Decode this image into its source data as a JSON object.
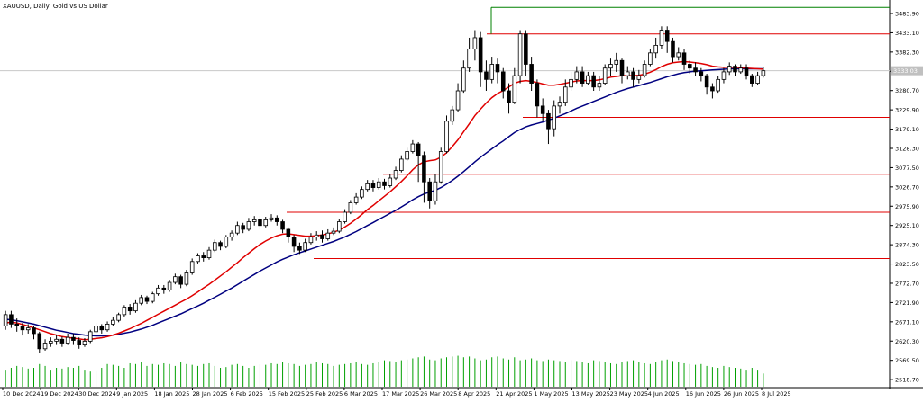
{
  "window": {
    "title": "XAUUSD, Daily:  Gold vs US Dollar"
  },
  "colors": {
    "background": "#ffffff",
    "bull_body": "#ffffff",
    "bear_body": "#000000",
    "candle_outline": "#000000",
    "ma_fast": "#e00000",
    "ma_slow": "#000080",
    "level_line": "#e00000",
    "high_line": "#008000",
    "volume": "#00a000",
    "axis": "#000000",
    "price_tag": "#c0c0c0"
  },
  "price_axis": {
    "labels": [
      "3483.90",
      "3433.10",
      "3382.30",
      "3331.50",
      "3280.70",
      "3229.90",
      "3179.10",
      "3128.30",
      "3077.50",
      "3026.70",
      "2975.90",
      "2925.10",
      "2874.30",
      "2823.50",
      "2772.70",
      "2721.90",
      "2671.10",
      "2620.30",
      "2569.50",
      "2518.70"
    ],
    "current_price_tag": "3333.03"
  },
  "time_axis": {
    "labels": [
      "10 Dec 2024",
      "19 Dec 2024",
      "30 Dec 2024",
      "9 Jan 2025",
      "18 Jan 2025",
      "28 Jan 2025",
      "6 Feb 2025",
      "15 Feb 2025",
      "25 Feb 2025",
      "6 Mar 2025",
      "17 Mar 2025",
      "26 Mar 2025",
      "8 Apr 2025",
      "21 Apr 2025",
      "1 May 2025",
      "13 May 2025",
      "23 May 2025",
      "4 Jun 2025",
      "16 Jun 2025",
      "26 Jun 2025",
      "8 Jul 2025"
    ]
  },
  "chart_data": {
    "type": "candlestick",
    "symbol": "XAUUSD",
    "timeframe": "Daily",
    "y_range": [
      2500,
      3510
    ],
    "levels": [
      3430,
      3210,
      3060,
      2960,
      2838
    ],
    "high_line": 3500,
    "candles": [
      [
        2660,
        2690,
        2650,
        2700
      ],
      [
        2690,
        2665,
        2655,
        2700
      ],
      [
        2665,
        2660,
        2645,
        2680
      ],
      [
        2660,
        2650,
        2635,
        2668
      ],
      [
        2650,
        2655,
        2640,
        2665
      ],
      [
        2655,
        2640,
        2625,
        2660
      ],
      [
        2640,
        2600,
        2590,
        2645
      ],
      [
        2600,
        2615,
        2595,
        2625
      ],
      [
        2615,
        2620,
        2605,
        2630
      ],
      [
        2620,
        2625,
        2610,
        2635
      ],
      [
        2625,
        2615,
        2605,
        2632
      ],
      [
        2615,
        2630,
        2610,
        2640
      ],
      [
        2630,
        2622,
        2610,
        2640
      ],
      [
        2622,
        2610,
        2600,
        2630
      ],
      [
        2610,
        2620,
        2605,
        2628
      ],
      [
        2620,
        2645,
        2615,
        2650
      ],
      [
        2645,
        2660,
        2640,
        2668
      ],
      [
        2660,
        2650,
        2640,
        2665
      ],
      [
        2650,
        2665,
        2645,
        2672
      ],
      [
        2665,
        2675,
        2660,
        2685
      ],
      [
        2675,
        2690,
        2670,
        2695
      ],
      [
        2690,
        2710,
        2685,
        2715
      ],
      [
        2710,
        2700,
        2690,
        2718
      ],
      [
        2700,
        2720,
        2695,
        2728
      ],
      [
        2720,
        2735,
        2715,
        2742
      ],
      [
        2735,
        2725,
        2718,
        2740
      ],
      [
        2725,
        2745,
        2720,
        2750
      ],
      [
        2745,
        2760,
        2740,
        2768
      ],
      [
        2760,
        2755,
        2745,
        2768
      ],
      [
        2755,
        2775,
        2750,
        2782
      ],
      [
        2775,
        2790,
        2770,
        2798
      ],
      [
        2790,
        2770,
        2760,
        2795
      ],
      [
        2770,
        2800,
        2765,
        2808
      ],
      [
        2800,
        2830,
        2795,
        2838
      ],
      [
        2830,
        2845,
        2825,
        2852
      ],
      [
        2845,
        2840,
        2830,
        2855
      ],
      [
        2840,
        2860,
        2835,
        2868
      ],
      [
        2860,
        2880,
        2855,
        2888
      ],
      [
        2880,
        2870,
        2860,
        2885
      ],
      [
        2870,
        2895,
        2865,
        2900
      ],
      [
        2895,
        2905,
        2885,
        2912
      ],
      [
        2905,
        2925,
        2900,
        2935
      ],
      [
        2925,
        2915,
        2905,
        2932
      ],
      [
        2915,
        2935,
        2910,
        2945
      ],
      [
        2935,
        2940,
        2925,
        2950
      ],
      [
        2940,
        2925,
        2915,
        2950
      ],
      [
        2925,
        2940,
        2920,
        2948
      ],
      [
        2940,
        2945,
        2935,
        2955
      ],
      [
        2945,
        2935,
        2925,
        2952
      ],
      [
        2935,
        2915,
        2905,
        2940
      ],
      [
        2915,
        2895,
        2880,
        2920
      ],
      [
        2895,
        2870,
        2855,
        2900
      ],
      [
        2870,
        2860,
        2850,
        2880
      ],
      [
        2860,
        2880,
        2855,
        2890
      ],
      [
        2880,
        2895,
        2875,
        2905
      ],
      [
        2895,
        2900,
        2885,
        2910
      ],
      [
        2900,
        2890,
        2880,
        2912
      ],
      [
        2890,
        2905,
        2885,
        2915
      ],
      [
        2905,
        2910,
        2900,
        2920
      ],
      [
        2910,
        2935,
        2905,
        2942
      ],
      [
        2935,
        2960,
        2930,
        2968
      ],
      [
        2960,
        2985,
        2955,
        2992
      ],
      [
        2985,
        3000,
        2980,
        3010
      ],
      [
        3000,
        3020,
        2995,
        3028
      ],
      [
        3020,
        3035,
        3015,
        3045
      ],
      [
        3035,
        3025,
        3015,
        3045
      ],
      [
        3025,
        3040,
        3020,
        3050
      ],
      [
        3040,
        3030,
        3020,
        3048
      ],
      [
        3030,
        3050,
        3025,
        3060
      ],
      [
        3050,
        3070,
        3045,
        3080
      ],
      [
        3070,
        3100,
        3065,
        3110
      ],
      [
        3100,
        3120,
        3095,
        3130
      ],
      [
        3120,
        3140,
        3115,
        3150
      ],
      [
        3140,
        3110,
        3040,
        3145
      ],
      [
        3110,
        3040,
        2985,
        3120
      ],
      [
        3040,
        2990,
        2970,
        3050
      ],
      [
        2990,
        3040,
        2980,
        3060
      ],
      [
        3040,
        3120,
        3035,
        3130
      ],
      [
        3120,
        3200,
        3115,
        3215
      ],
      [
        3200,
        3230,
        3190,
        3240
      ],
      [
        3230,
        3280,
        3225,
        3300
      ],
      [
        3280,
        3340,
        3275,
        3360
      ],
      [
        3340,
        3390,
        3330,
        3420
      ],
      [
        3390,
        3420,
        3360,
        3440
      ],
      [
        3420,
        3330,
        3290,
        3435
      ],
      [
        3330,
        3310,
        3280,
        3360
      ],
      [
        3310,
        3350,
        3300,
        3370
      ],
      [
        3350,
        3330,
        3300,
        3365
      ],
      [
        3330,
        3280,
        3260,
        3340
      ],
      [
        3280,
        3250,
        3220,
        3300
      ],
      [
        3250,
        3320,
        3245,
        3340
      ],
      [
        3320,
        3430,
        3300,
        3440
      ],
      [
        3430,
        3350,
        3320,
        3440
      ],
      [
        3350,
        3300,
        3280,
        3370
      ],
      [
        3300,
        3240,
        3210,
        3310
      ],
      [
        3240,
        3220,
        3200,
        3260
      ],
      [
        3220,
        3180,
        3140,
        3230
      ],
      [
        3180,
        3240,
        3160,
        3255
      ],
      [
        3240,
        3250,
        3220,
        3265
      ],
      [
        3250,
        3290,
        3240,
        3310
      ],
      [
        3290,
        3310,
        3280,
        3330
      ],
      [
        3310,
        3330,
        3300,
        3345
      ],
      [
        3330,
        3300,
        3290,
        3345
      ],
      [
        3300,
        3320,
        3295,
        3330
      ],
      [
        3320,
        3290,
        3280,
        3330
      ],
      [
        3290,
        3300,
        3280,
        3320
      ],
      [
        3300,
        3340,
        3295,
        3350
      ],
      [
        3340,
        3350,
        3320,
        3365
      ],
      [
        3350,
        3360,
        3330,
        3380
      ],
      [
        3360,
        3320,
        3300,
        3365
      ],
      [
        3320,
        3330,
        3310,
        3345
      ],
      [
        3330,
        3310,
        3290,
        3340
      ],
      [
        3310,
        3320,
        3300,
        3335
      ],
      [
        3320,
        3350,
        3315,
        3360
      ],
      [
        3350,
        3380,
        3345,
        3390
      ],
      [
        3380,
        3400,
        3365,
        3420
      ],
      [
        3400,
        3440,
        3390,
        3450
      ],
      [
        3440,
        3410,
        3380,
        3450
      ],
      [
        3410,
        3370,
        3355,
        3420
      ],
      [
        3370,
        3380,
        3360,
        3395
      ],
      [
        3380,
        3350,
        3335,
        3390
      ],
      [
        3350,
        3340,
        3325,
        3360
      ],
      [
        3340,
        3330,
        3318,
        3355
      ],
      [
        3330,
        3320,
        3305,
        3340
      ],
      [
        3320,
        3290,
        3270,
        3325
      ],
      [
        3290,
        3280,
        3260,
        3300
      ],
      [
        3280,
        3310,
        3275,
        3320
      ],
      [
        3310,
        3330,
        3300,
        3340
      ],
      [
        3330,
        3345,
        3322,
        3355
      ],
      [
        3345,
        3330,
        3320,
        3350
      ],
      [
        3330,
        3340,
        3325,
        3350
      ],
      [
        3340,
        3320,
        3310,
        3350
      ],
      [
        3320,
        3300,
        3290,
        3325
      ],
      [
        3300,
        3320,
        3295,
        3330
      ],
      [
        3320,
        3333,
        3315,
        3342
      ]
    ],
    "ma_fast_values": [
      2668,
      2670,
      2668,
      2664,
      2660,
      2655,
      2650,
      2645,
      2640,
      2636,
      2632,
      2630,
      2628,
      2626,
      2624,
      2625,
      2627,
      2629,
      2632,
      2636,
      2641,
      2647,
      2653,
      2660,
      2667,
      2675,
      2683,
      2691,
      2699,
      2707,
      2715,
      2723,
      2731,
      2740,
      2750,
      2760,
      2770,
      2781,
      2792,
      2803,
      2815,
      2827,
      2840,
      2852,
      2864,
      2875,
      2884,
      2892,
      2898,
      2902,
      2903,
      2901,
      2899,
      2897,
      2897,
      2898,
      2900,
      2903,
      2907,
      2913,
      2921,
      2931,
      2942,
      2954,
      2967,
      2978,
      2990,
      3002,
      3014,
      3027,
      3041,
      3056,
      3072,
      3085,
      3093,
      3096,
      3098,
      3105,
      3117,
      3133,
      3151,
      3172,
      3193,
      3215,
      3232,
      3248,
      3262,
      3273,
      3281,
      3290,
      3300,
      3305,
      3307,
      3305,
      3302,
      3298,
      3295,
      3295,
      3297,
      3300,
      3303,
      3306,
      3307,
      3307,
      3307,
      3309,
      3312,
      3316,
      3318,
      3320,
      3320,
      3320,
      3321,
      3324,
      3329,
      3336,
      3344,
      3350,
      3354,
      3356,
      3357,
      3356,
      3354,
      3352,
      3349,
      3345,
      3343,
      3342,
      3342,
      3342,
      3341,
      3340,
      3339,
      3338,
      3337
    ],
    "ma_slow_values": [
      2678,
      2676,
      2674,
      2671,
      2668,
      2665,
      2661,
      2657,
      2653,
      2649,
      2646,
      2643,
      2640,
      2638,
      2636,
      2635,
      2634,
      2634,
      2635,
      2636,
      2638,
      2641,
      2644,
      2648,
      2652,
      2657,
      2662,
      2668,
      2674,
      2680,
      2686,
      2692,
      2699,
      2706,
      2713,
      2720,
      2728,
      2736,
      2744,
      2752,
      2760,
      2769,
      2778,
      2787,
      2796,
      2805,
      2813,
      2821,
      2829,
      2836,
      2842,
      2848,
      2853,
      2858,
      2863,
      2868,
      2873,
      2878,
      2883,
      2889,
      2895,
      2902,
      2909,
      2917,
      2925,
      2933,
      2941,
      2949,
      2957,
      2965,
      2974,
      2983,
      2993,
      3001,
      3008,
      3013,
      3018,
      3025,
      3034,
      3044,
      3055,
      3067,
      3080,
      3093,
      3105,
      3116,
      3127,
      3138,
      3148,
      3159,
      3170,
      3178,
      3185,
      3190,
      3194,
      3198,
      3203,
      3208,
      3214,
      3220,
      3227,
      3234,
      3240,
      3246,
      3252,
      3258,
      3264,
      3270,
      3276,
      3281,
      3286,
      3290,
      3294,
      3298,
      3302,
      3307,
      3312,
      3317,
      3321,
      3325,
      3328,
      3330,
      3332,
      3333,
      3334,
      3335,
      3336,
      3337,
      3338,
      3338,
      3338,
      3338,
      3338,
      3338,
      3338
    ],
    "volumes": [
      0.45,
      0.5,
      0.55,
      0.52,
      0.48,
      0.5,
      0.6,
      0.55,
      0.45,
      0.5,
      0.48,
      0.52,
      0.5,
      0.55,
      0.45,
      0.4,
      0.42,
      0.5,
      0.6,
      0.58,
      0.55,
      0.5,
      0.62,
      0.6,
      0.65,
      0.55,
      0.6,
      0.58,
      0.62,
      0.6,
      0.55,
      0.65,
      0.6,
      0.58,
      0.55,
      0.6,
      0.62,
      0.55,
      0.5,
      0.52,
      0.58,
      0.6,
      0.55,
      0.5,
      0.55,
      0.6,
      0.58,
      0.62,
      0.6,
      0.65,
      0.62,
      0.6,
      0.55,
      0.58,
      0.6,
      0.65,
      0.62,
      0.6,
      0.55,
      0.58,
      0.6,
      0.62,
      0.65,
      0.6,
      0.58,
      0.62,
      0.65,
      0.7,
      0.68,
      0.65,
      0.7,
      0.72,
      0.75,
      0.78,
      0.8,
      0.72,
      0.7,
      0.75,
      0.78,
      0.8,
      0.82,
      0.78,
      0.8,
      0.75,
      0.7,
      0.72,
      0.78,
      0.8,
      0.75,
      0.72,
      0.78,
      0.7,
      0.72,
      0.75,
      0.7,
      0.68,
      0.72,
      0.7,
      0.68,
      0.65,
      0.7,
      0.68,
      0.65,
      0.62,
      0.7,
      0.68,
      0.65,
      0.62,
      0.6,
      0.65,
      0.68,
      0.7,
      0.65,
      0.62,
      0.6,
      0.65,
      0.7,
      0.72,
      0.68,
      0.65,
      0.62,
      0.6,
      0.58,
      0.6,
      0.55,
      0.52,
      0.5,
      0.55,
      0.52,
      0.5,
      0.48,
      0.45,
      0.5,
      0.45,
      0.35
    ]
  }
}
